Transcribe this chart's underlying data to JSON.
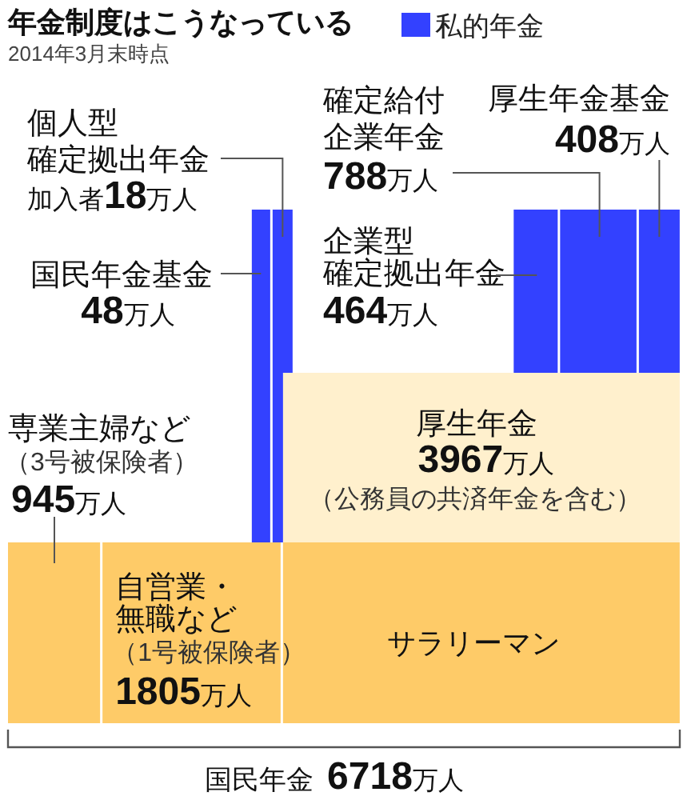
{
  "chart_data": {
    "type": "other",
    "title": "年金制度はこうなっている",
    "subtitle": "2014年3月末時点",
    "categories": [
      "個人型確定拠出年金",
      "確定給付企業年金",
      "厚生年金基金",
      "国民年金基金",
      "企業型確定拠出年金",
      "厚生年金",
      "専業主婦など",
      "自営業・無職など",
      "サラリーマン",
      "国民年金"
    ],
    "values": [
      null,
      null,
      null,
      null,
      null,
      3967,
      945,
      1805,
      null,
      6718
    ],
    "value_labels": [
      null,
      null,
      null,
      null,
      null,
      "3967万人",
      "945万人",
      "1805万人",
      null,
      "6718万人"
    ],
    "colors": [
      null,
      null,
      null,
      null,
      null,
      "#fff0cd",
      "#fecb68",
      "#fecb68",
      "#fecb68",
      "#555555"
    ],
    "series": [
      {
        "name": "私的年金",
        "color": "#3341ff",
        "values": [
          18,
          788,
          408,
          48,
          464,
          null,
          null,
          null,
          null,
          null
        ],
        "value_labels": [
          "加入者18万人",
          "788万人",
          "408万人",
          "48万人",
          "464万人",
          null,
          null,
          null,
          null,
          null
        ]
      }
    ],
    "legend": "top",
    "annotations": [
      "（3号被保険者）",
      "（公務員の共済年金を含む）",
      "（1号被保険者）"
    ]
  }
}
